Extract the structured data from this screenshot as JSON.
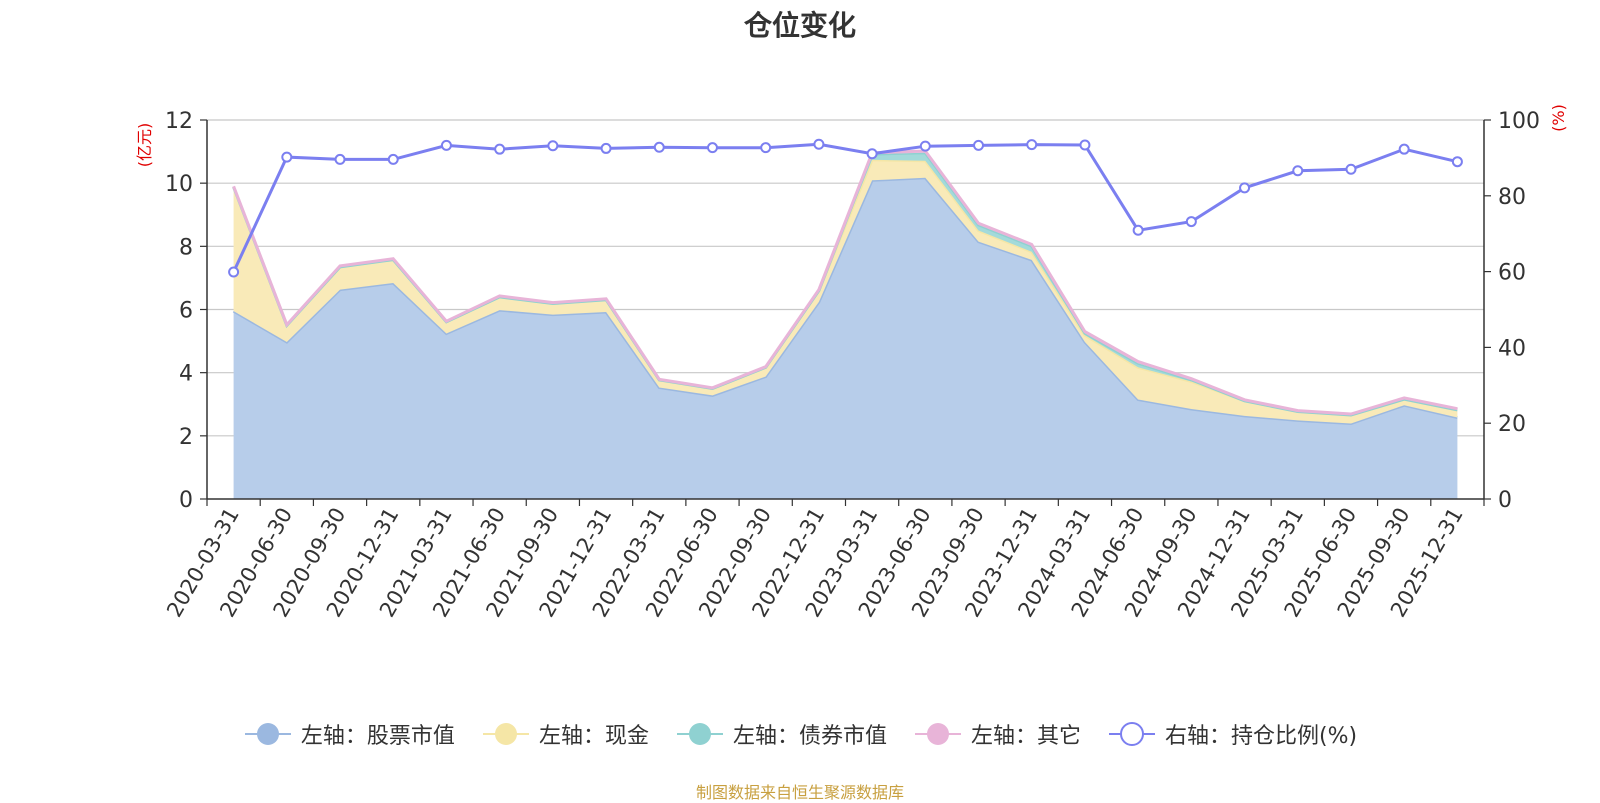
{
  "chart_data": {
    "type": "area",
    "title": "仓位变化",
    "left_axis_unit": "(亿元)",
    "right_axis_unit": "(%)",
    "left_ylim": [
      0,
      12
    ],
    "left_yticks": [
      0,
      2,
      4,
      6,
      8,
      10,
      12
    ],
    "right_ylim": [
      0,
      100
    ],
    "right_yticks": [
      0,
      20,
      40,
      60,
      80,
      100
    ],
    "grid": true,
    "legend_position": "bottom",
    "categories": [
      "2020-03-31",
      "2020-06-30",
      "2020-09-30",
      "2020-12-31",
      "2021-03-31",
      "2021-06-30",
      "2021-09-30",
      "2021-12-31",
      "2022-03-31",
      "2022-06-30",
      "2022-09-30",
      "2022-12-31",
      "2023-03-31",
      "2023-06-30",
      "2023-09-30",
      "2023-12-31",
      "2024-03-31",
      "2024-06-30",
      "2024-09-30",
      "2024-12-31",
      "2025-03-31",
      "2025-06-30",
      "2025-09-30",
      "2025-12-31"
    ],
    "series": [
      {
        "name": "左轴：股票市值",
        "axis": "left",
        "kind": "stacked-area",
        "color": "#9bb8e0",
        "fill": "#b7cdea",
        "values": [
          5.95,
          4.97,
          6.63,
          6.84,
          5.24,
          5.98,
          5.84,
          5.92,
          3.53,
          3.28,
          3.88,
          6.24,
          10.09,
          10.17,
          8.15,
          7.57,
          4.97,
          3.15,
          2.85,
          2.63,
          2.49,
          2.39,
          2.97,
          2.58
        ]
      },
      {
        "name": "左轴：现金",
        "axis": "left",
        "kind": "stacked-area",
        "color": "#f5e6a6",
        "fill": "#f9eab8",
        "values": [
          3.93,
          0.53,
          0.72,
          0.74,
          0.37,
          0.42,
          0.35,
          0.39,
          0.24,
          0.22,
          0.29,
          0.36,
          0.65,
          0.54,
          0.35,
          0.26,
          0.22,
          1.02,
          0.87,
          0.48,
          0.28,
          0.27,
          0.19,
          0.24
        ]
      },
      {
        "name": "左轴：债券市值",
        "axis": "left",
        "kind": "stacked-area",
        "color": "#8fd1d1",
        "fill": "#a3dada",
        "values": [
          0,
          0,
          0,
          0,
          0,
          0,
          0,
          0,
          0,
          0,
          0,
          0,
          0.18,
          0.25,
          0.18,
          0.18,
          0.06,
          0.13,
          0.05,
          0,
          0,
          0,
          0,
          0
        ]
      },
      {
        "name": "左轴：其它",
        "axis": "left",
        "kind": "stacked-area",
        "color": "#e8b4d8",
        "fill": "#f0cce4",
        "values": [
          0.02,
          0.02,
          0.03,
          0.03,
          0.02,
          0.03,
          0.03,
          0.03,
          0.02,
          0.02,
          0.02,
          0.03,
          0.04,
          0.06,
          0.05,
          0.05,
          0.05,
          0.05,
          0.04,
          0.03,
          0.03,
          0.03,
          0.04,
          0.04
        ]
      },
      {
        "name": "右轴：持仓比例(%)",
        "axis": "right",
        "kind": "line",
        "color": "#7b7ff0",
        "values": [
          59.9,
          90.2,
          89.6,
          89.6,
          93.3,
          92.3,
          93.2,
          92.5,
          92.8,
          92.7,
          92.7,
          93.6,
          91.1,
          93.1,
          93.3,
          93.5,
          93.4,
          70.9,
          73.2,
          82.1,
          86.6,
          87.0,
          92.3,
          89.0
        ]
      }
    ],
    "source_note": "制图数据来自恒生聚源数据库"
  }
}
